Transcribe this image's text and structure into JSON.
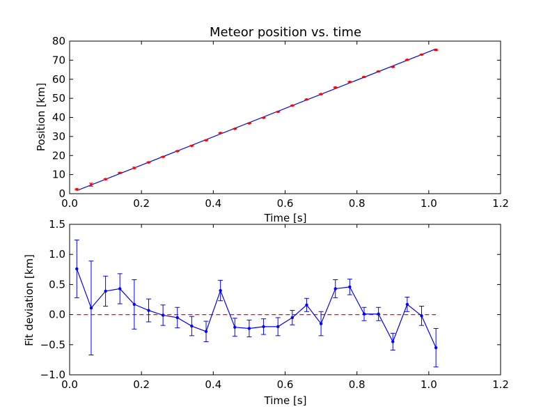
{
  "chart_data": [
    {
      "type": "scatter",
      "title": "Meteor position vs. time",
      "xlabel": "Time [s]",
      "ylabel": "Position [km]",
      "xlim": [
        0,
        1.2
      ],
      "ylim": [
        0,
        80
      ],
      "xticks": [
        "0.0",
        "0.2",
        "0.4",
        "0.6",
        "0.8",
        "1.0",
        "1.2"
      ],
      "yticks": [
        "0",
        "10",
        "20",
        "30",
        "40",
        "50",
        "60",
        "70",
        "80"
      ],
      "colors": {
        "points": "#ff0000",
        "fit": "#0000ff"
      },
      "x": [
        0.02,
        0.06,
        0.1,
        0.14,
        0.18,
        0.22,
        0.26,
        0.3,
        0.34,
        0.38,
        0.42,
        0.46,
        0.5,
        0.54,
        0.58,
        0.62,
        0.66,
        0.7,
        0.74,
        0.78,
        0.82,
        0.86,
        0.9,
        0.94,
        0.98,
        1.02
      ],
      "series": [
        {
          "type": "points_with_error",
          "y": [
            2.3,
            4.7,
            7.6,
            10.9,
            13.5,
            16.4,
            19.3,
            22.3,
            25.1,
            28.0,
            31.8,
            34.0,
            36.9,
            39.8,
            42.9,
            46.2,
            49.4,
            52.2,
            55.7,
            58.6,
            61.2,
            64.1,
            66.5,
            70.2,
            72.9,
            75.4
          ],
          "yerr": [
            0.3,
            0.8,
            0.3,
            0.3,
            0.4,
            0.2,
            0.2,
            0.2,
            0.2,
            0.2,
            0.2,
            0.2,
            0.2,
            0.2,
            0.2,
            0.2,
            0.2,
            0.2,
            0.2,
            0.2,
            0.2,
            0.2,
            0.2,
            0.2,
            0.2,
            0.3
          ]
        },
        {
          "type": "fit_line",
          "x": [
            0.02,
            1.02
          ],
          "y": [
            1.6,
            75.9
          ]
        }
      ]
    },
    {
      "type": "line",
      "title": "",
      "xlabel": "Time [s]",
      "ylabel": "Fit deviation [km]",
      "xlim": [
        0,
        1.2
      ],
      "ylim": [
        -1.0,
        1.5
      ],
      "xticks": [
        "0.0",
        "0.2",
        "0.4",
        "0.6",
        "0.8",
        "1.0",
        "1.2"
      ],
      "yticks": [
        "−1.0",
        "−0.5",
        "0.0",
        "0.5",
        "1.0",
        "1.5"
      ],
      "colors": {
        "line": "#0000ff",
        "zero": "#ff0000"
      },
      "x": [
        0.02,
        0.06,
        0.1,
        0.14,
        0.18,
        0.22,
        0.26,
        0.3,
        0.34,
        0.38,
        0.42,
        0.46,
        0.5,
        0.54,
        0.58,
        0.62,
        0.66,
        0.7,
        0.74,
        0.78,
        0.82,
        0.86,
        0.9,
        0.94,
        0.98,
        1.02
      ],
      "series": [
        {
          "type": "line_with_error",
          "y": [
            0.76,
            0.11,
            0.39,
            0.43,
            0.17,
            0.07,
            -0.01,
            -0.05,
            -0.19,
            -0.28,
            0.4,
            -0.21,
            -0.23,
            -0.2,
            -0.2,
            -0.05,
            0.16,
            -0.15,
            0.43,
            0.46,
            0.01,
            0.01,
            -0.45,
            0.17,
            -0.02,
            -0.55
          ],
          "yerr": [
            0.48,
            0.78,
            0.25,
            0.25,
            0.41,
            0.19,
            0.17,
            0.17,
            0.16,
            0.17,
            0.17,
            0.15,
            0.14,
            0.13,
            0.15,
            0.12,
            0.11,
            0.2,
            0.15,
            0.13,
            0.11,
            0.11,
            0.14,
            0.12,
            0.16,
            0.32
          ]
        },
        {
          "type": "zero_line",
          "x": [
            0.02,
            1.02
          ],
          "y": [
            0,
            0
          ]
        }
      ]
    }
  ]
}
